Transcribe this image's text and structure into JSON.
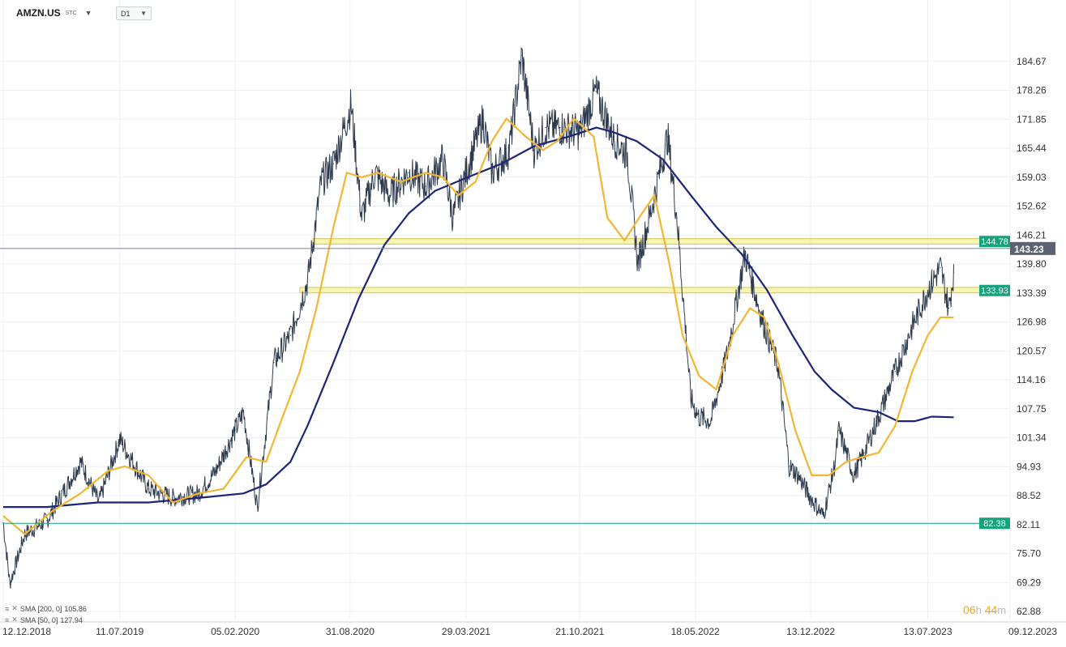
{
  "header": {
    "symbol": "AMZN.US",
    "exchange_tag": "STC",
    "timeframe": "D1"
  },
  "legend": [
    {
      "label": "SMA [200,  0]",
      "value": "105.86"
    },
    {
      "label": "SMA [50,  0]",
      "value": "127.94"
    }
  ],
  "countdown": {
    "hours": "06",
    "h_unit": "h",
    "minutes": "44",
    "m_unit": "m"
  },
  "colors": {
    "price": "#2e3b4e",
    "sma50": "#f2b632",
    "sma200": "#1c2578",
    "level_fill": "#f6f3a0",
    "level_stroke": "#d4c84a",
    "level_line": "#1a9e82",
    "level_badge": "#16a37c",
    "current_badge": "#5a6370",
    "grid": "#eceff3"
  },
  "chart_data": {
    "type": "line",
    "title": "",
    "ylim": [
      62.88,
      191.08
    ],
    "y_ticks": [
      "184.67",
      "178.26",
      "171.85",
      "165.44",
      "159.03",
      "152.62",
      "146.21",
      "139.80",
      "133.39",
      "126.98",
      "120.57",
      "114.16",
      "107.75",
      "101.34",
      "94.93",
      "88.52",
      "82.11",
      "75.70",
      "69.29",
      "62.88"
    ],
    "x_ticks": [
      "12.12.2018",
      "11.07.2019",
      "05.02.2020",
      "31.08.2020",
      "29.03.2021",
      "21.10.2021",
      "18.05.2022",
      "13.12.2022",
      "13.07.2023",
      "09.12.2023"
    ],
    "x_range": [
      "2018-12-12",
      "2023-12-09"
    ],
    "grid": true,
    "series": [
      {
        "role": "price",
        "x": [
          "2018-12-12",
          "2018-12-24",
          "2019-01-20",
          "2019-03-01",
          "2019-05-01",
          "2019-06-03",
          "2019-07-11",
          "2019-09-01",
          "2019-10-15",
          "2019-12-01",
          "2020-01-01",
          "2020-02-05",
          "2020-02-20",
          "2020-03-16",
          "2020-04-15",
          "2020-05-15",
          "2020-06-15",
          "2020-07-10",
          "2020-08-01",
          "2020-09-02",
          "2020-09-21",
          "2020-10-15",
          "2020-11-10",
          "2020-12-15",
          "2021-01-15",
          "2021-02-15",
          "2021-03-05",
          "2021-03-29",
          "2021-04-29",
          "2021-05-15",
          "2021-06-15",
          "2021-07-08",
          "2021-07-30",
          "2021-08-20",
          "2021-09-15",
          "2021-10-21",
          "2021-11-19",
          "2021-12-20",
          "2022-01-15",
          "2022-02-03",
          "2022-02-24",
          "2022-03-29",
          "2022-04-15",
          "2022-05-10",
          "2022-05-24",
          "2022-06-15",
          "2022-07-15",
          "2022-08-16",
          "2022-09-15",
          "2022-10-15",
          "2022-11-04",
          "2022-11-20",
          "2022-12-13",
          "2023-01-05",
          "2023-01-25",
          "2023-02-02",
          "2023-03-01",
          "2023-03-20",
          "2023-04-15",
          "2023-05-15",
          "2023-06-15",
          "2023-07-13",
          "2023-08-05",
          "2023-08-20",
          "2023-08-29"
        ],
        "values": [
          82.5,
          69,
          80,
          83,
          96,
          87,
          101,
          90,
          88,
          89,
          94,
          103,
          107,
          86,
          118,
          124,
          136,
          158,
          162,
          175,
          150,
          160,
          155,
          160,
          157,
          163,
          150,
          160,
          172,
          160,
          165,
          186,
          165,
          170,
          170,
          169,
          178,
          168,
          164,
          140,
          150,
          168,
          150,
          110,
          106,
          105,
          120,
          142,
          128,
          117,
          95,
          93,
          88,
          84,
          95,
          103,
          93,
          98,
          106,
          116,
          126,
          134,
          139,
          130,
          138
        ]
      },
      {
        "name": "SMA [50,  0]",
        "role": "sma50",
        "x": [
          "2018-12-12",
          "2019-01-20",
          "2019-03-10",
          "2019-05-01",
          "2019-06-20",
          "2019-07-20",
          "2019-09-01",
          "2019-10-15",
          "2019-12-01",
          "2020-01-15",
          "2020-02-25",
          "2020-04-01",
          "2020-05-01",
          "2020-06-01",
          "2020-07-01",
          "2020-08-01",
          "2020-08-25",
          "2020-09-21",
          "2020-10-20",
          "2020-12-01",
          "2021-01-15",
          "2021-02-15",
          "2021-03-15",
          "2021-04-15",
          "2021-05-15",
          "2021-06-10",
          "2021-07-15",
          "2021-08-15",
          "2021-09-10",
          "2021-10-10",
          "2021-11-15",
          "2021-12-10",
          "2022-01-10",
          "2022-02-05",
          "2022-03-05",
          "2022-04-01",
          "2022-04-25",
          "2022-05-25",
          "2022-06-25",
          "2022-07-25",
          "2022-08-25",
          "2022-09-20",
          "2022-10-15",
          "2022-11-15",
          "2022-12-15",
          "2023-01-15",
          "2023-02-15",
          "2023-03-15",
          "2023-04-15",
          "2023-05-15",
          "2023-06-15",
          "2023-07-13",
          "2023-08-05",
          "2023-08-29"
        ],
        "values": [
          84,
          80,
          85,
          89,
          94,
          95,
          93,
          87,
          89,
          90,
          97,
          96,
          106,
          116,
          130,
          148,
          160,
          159,
          160,
          158,
          160,
          159,
          155,
          158,
          167,
          172,
          168,
          165,
          167,
          172,
          168,
          150,
          145,
          150,
          155,
          140,
          124,
          115,
          112,
          124,
          130,
          128,
          118,
          103,
          93,
          93,
          96,
          97,
          98,
          104,
          116,
          124,
          128,
          127.94
        ]
      },
      {
        "name": "SMA [200,  0]",
        "role": "sma200",
        "x": [
          "2018-12-12",
          "2019-03-01",
          "2019-06-01",
          "2019-09-01",
          "2019-12-01",
          "2020-02-20",
          "2020-04-01",
          "2020-05-15",
          "2020-06-15",
          "2020-08-01",
          "2020-09-15",
          "2020-11-01",
          "2020-12-15",
          "2021-02-01",
          "2021-04-01",
          "2021-06-01",
          "2021-08-01",
          "2021-10-01",
          "2021-11-20",
          "2021-12-20",
          "2022-02-01",
          "2022-03-20",
          "2022-05-10",
          "2022-06-25",
          "2022-08-10",
          "2022-09-25",
          "2022-11-10",
          "2022-12-20",
          "2023-01-20",
          "2023-03-01",
          "2023-04-15",
          "2023-05-20",
          "2023-06-20",
          "2023-07-20",
          "2023-08-29"
        ],
        "values": [
          86,
          86,
          87,
          87,
          88,
          89,
          91,
          96,
          104,
          118,
          132,
          144,
          151,
          156,
          159,
          162,
          166,
          168,
          170,
          169,
          167,
          163,
          155,
          148,
          142,
          134,
          124,
          116,
          112,
          108,
          107,
          105,
          105,
          106,
          105.86
        ]
      }
    ],
    "levels": [
      {
        "value": 144.78,
        "label": "144.78",
        "zone": [
          144.2,
          145.4
        ],
        "zone_x": [
          "2020-06-25",
          "2023-12-08"
        ]
      },
      {
        "value": 133.93,
        "label": "133.93",
        "zone": [
          133.4,
          134.6
        ],
        "zone_x": [
          "2020-06-01",
          "2023-11-28"
        ]
      },
      {
        "value": 82.38,
        "label": "82.38"
      }
    ],
    "current_price": {
      "value": 143.23,
      "label": "143.23"
    }
  }
}
